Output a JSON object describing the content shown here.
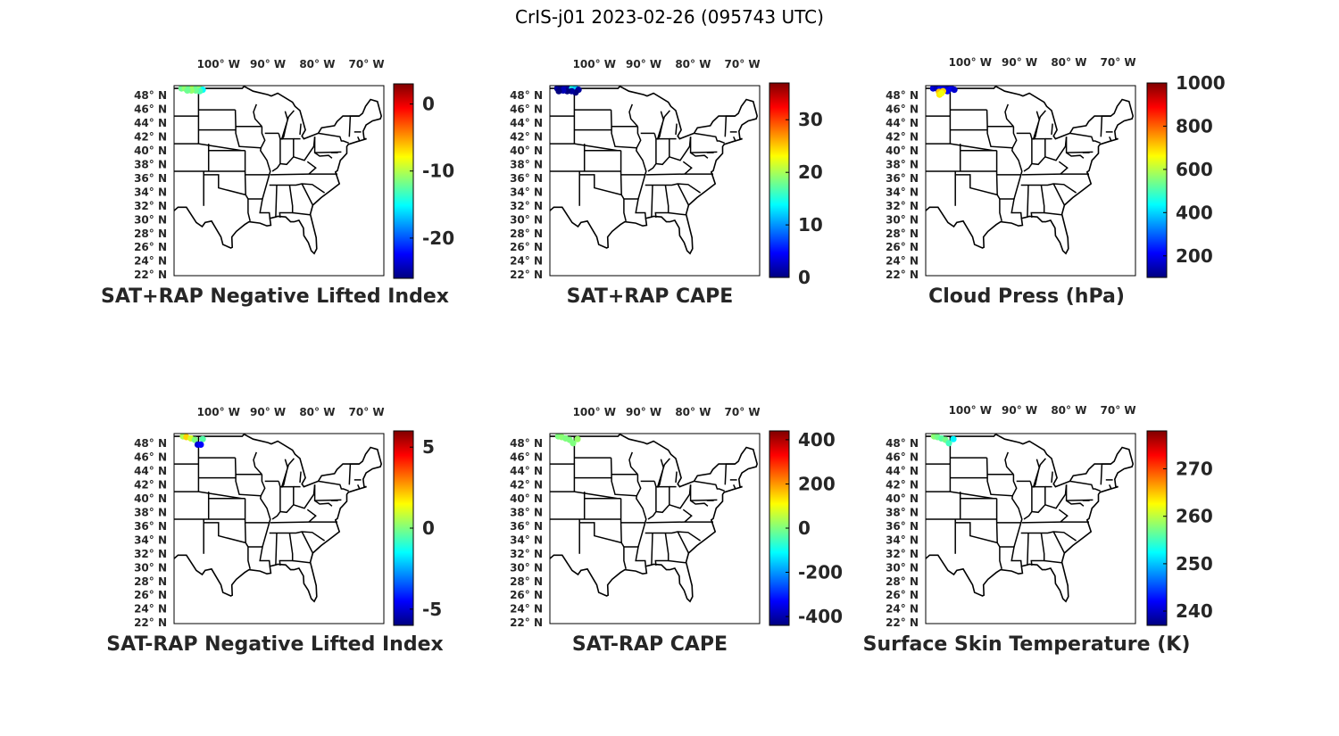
{
  "figure_title": "CrIS-j01 2023-02-26 (095743 UTC)",
  "colors": {
    "jet": [
      "#00007f",
      "#0000ff",
      "#007fff",
      "#00ffff",
      "#7fff7f",
      "#ffff00",
      "#ff7f00",
      "#ff0000",
      "#7f0000"
    ],
    "map_line": "#000000",
    "text": "#262626"
  },
  "lon_labels": [
    "100",
    "90",
    "80",
    "70"
  ],
  "lon_suffix": "W",
  "lat_labels": [
    "48",
    "46",
    "44",
    "42",
    "40",
    "38",
    "36",
    "34",
    "32",
    "30",
    "28",
    "26",
    "24",
    "22"
  ],
  "lat_suffix": "N",
  "panels": [
    {
      "title": "SAT+RAP Negative Lifted Index",
      "colorbar": {
        "min": -26,
        "max": 3,
        "ticks": [
          {
            "value": 0,
            "label": "0"
          },
          {
            "value": -10,
            "label": "-10"
          },
          {
            "value": -20,
            "label": "-20"
          }
        ]
      },
      "points": [
        [
          -107.5,
          49.0,
          -12
        ],
        [
          -106.8,
          49.0,
          -11
        ],
        [
          -106,
          49.0,
          -12
        ],
        [
          -105.2,
          49.0,
          -10
        ],
        [
          -104.5,
          49.0,
          -12
        ],
        [
          -103.8,
          49.0,
          -11
        ],
        [
          -103.2,
          48.8,
          -15
        ],
        [
          -103.8,
          48.6,
          -13
        ],
        [
          -104.6,
          48.7,
          -12
        ],
        [
          -105.5,
          48.7,
          -11
        ],
        [
          -106.3,
          48.7,
          -12
        ]
      ]
    },
    {
      "title": "SAT+RAP CAPE",
      "colorbar": {
        "min": 0,
        "max": 37,
        "ticks": [
          {
            "value": 30,
            "label": "30"
          },
          {
            "value": 20,
            "label": "20"
          },
          {
            "value": 10,
            "label": "10"
          },
          {
            "value": 0,
            "label": "0"
          }
        ]
      },
      "points": [
        [
          -107.5,
          49.0,
          1
        ],
        [
          -106.8,
          49.0,
          0
        ],
        [
          -106.0,
          49.0,
          2
        ],
        [
          -105.2,
          49.0,
          1
        ],
        [
          -104.5,
          49.0,
          15
        ],
        [
          -103.8,
          49.0,
          12
        ],
        [
          -103.2,
          48.8,
          1
        ],
        [
          -103.8,
          48.4,
          0
        ],
        [
          -104.6,
          48.6,
          1
        ],
        [
          -105.5,
          48.6,
          0
        ],
        [
          -106.3,
          48.7,
          2
        ],
        [
          -107.2,
          48.6,
          0
        ]
      ]
    },
    {
      "title": "Cloud Press (hPa)",
      "colorbar": {
        "min": 100,
        "max": 1000,
        "ticks": [
          {
            "value": 1000,
            "label": "1000"
          },
          {
            "value": 800,
            "label": "800"
          },
          {
            "value": 600,
            "label": "600"
          },
          {
            "value": 400,
            "label": "400"
          },
          {
            "value": 200,
            "label": "200"
          }
        ]
      },
      "points": [
        [
          -107.5,
          49.0,
          180
        ],
        [
          -106.8,
          49.0,
          150
        ],
        [
          -106.0,
          49.0,
          220
        ],
        [
          -105.2,
          49.0,
          190
        ],
        [
          -104.5,
          49.0,
          160
        ],
        [
          -103.8,
          49.0,
          200
        ],
        [
          -103.2,
          48.8,
          170
        ],
        [
          -104.6,
          48.6,
          200
        ],
        [
          -105.5,
          48.6,
          700
        ],
        [
          -106.3,
          48.5,
          720
        ],
        [
          -106.2,
          48.1,
          680
        ],
        [
          -105.8,
          48.3,
          650
        ]
      ]
    },
    {
      "title": "SAT-RAP Negative Lifted Index",
      "colorbar": {
        "min": -6,
        "max": 6,
        "ticks": [
          {
            "value": 5,
            "label": "5"
          },
          {
            "value": 0,
            "label": "0"
          },
          {
            "value": -5,
            "label": "-5"
          }
        ]
      },
      "points": [
        [
          -107.2,
          49.0,
          0.5
        ],
        [
          -106.5,
          48.9,
          2
        ],
        [
          -105.6,
          48.7,
          1
        ],
        [
          -104.8,
          48.5,
          0
        ],
        [
          -103.2,
          48.6,
          -0.5
        ],
        [
          -104.2,
          47.8,
          -5
        ],
        [
          -103.6,
          47.8,
          -4.5
        ]
      ]
    },
    {
      "title": "SAT-RAP CAPE",
      "colorbar": {
        "min": -440,
        "max": 440,
        "ticks": [
          {
            "value": 400,
            "label": "400"
          },
          {
            "value": 200,
            "label": "200"
          },
          {
            "value": 0,
            "label": "0"
          },
          {
            "value": -200,
            "label": "-200"
          },
          {
            "value": -400,
            "label": "-400"
          }
        ]
      },
      "points": [
        [
          -107.3,
          49.0,
          0
        ],
        [
          -106.6,
          48.9,
          10
        ],
        [
          -105.8,
          48.7,
          0
        ],
        [
          -105.0,
          48.5,
          0
        ],
        [
          -103.4,
          48.6,
          20
        ],
        [
          -104.3,
          48.0,
          0
        ]
      ]
    },
    {
      "title": "Surface Skin Temperature (K)",
      "colorbar": {
        "min": 237,
        "max": 278,
        "ticks": [
          {
            "value": 270,
            "label": "270"
          },
          {
            "value": 260,
            "label": "260"
          },
          {
            "value": 250,
            "label": "250"
          },
          {
            "value": 240,
            "label": "240"
          }
        ]
      },
      "points": [
        [
          -107.3,
          49.0,
          258
        ],
        [
          -106.6,
          48.9,
          257
        ],
        [
          -105.8,
          48.7,
          256
        ],
        [
          -105.0,
          48.5,
          257
        ],
        [
          -103.4,
          48.6,
          252
        ],
        [
          -104.3,
          48.0,
          255
        ]
      ]
    }
  ]
}
